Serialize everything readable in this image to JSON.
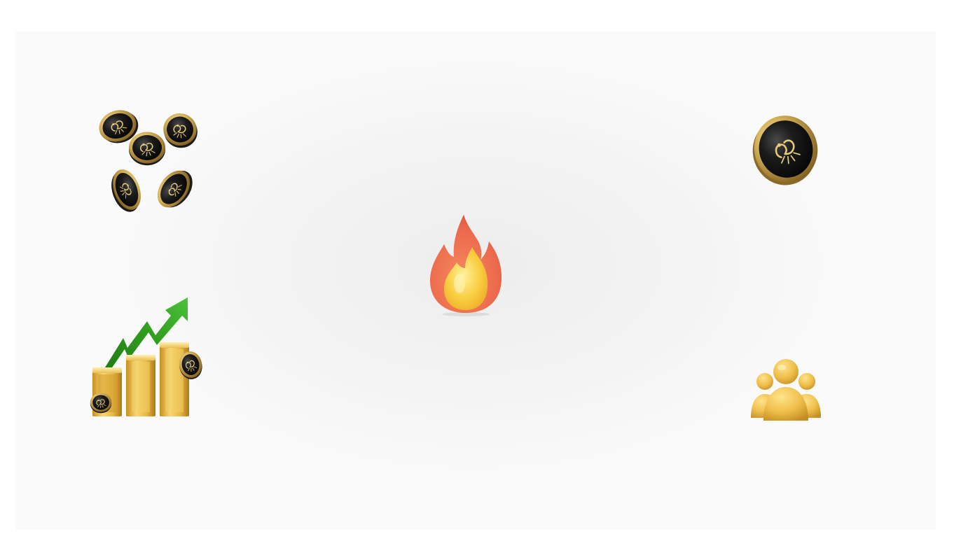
{
  "illustrations": [
    {
      "key": "coin-cluster",
      "icon": "scorpion-coins-cluster-icon"
    },
    {
      "key": "single-coin",
      "icon": "scorpion-coin-icon"
    },
    {
      "key": "flame",
      "icon": "fire-icon"
    },
    {
      "key": "growth-chart",
      "icon": "gold-bars-growth-arrow-icon"
    },
    {
      "key": "community",
      "icon": "people-group-icon"
    }
  ],
  "colors": {
    "background": "#fafafa",
    "coin_black": "#141414",
    "coin_gold": "#d8b45a",
    "flame_outer": "#ee6a4e",
    "flame_inner": "#f7c63c",
    "arrow_green": "#2e9a1e",
    "bar_gold": "#e6b844",
    "people_gold": "#efbf4a"
  }
}
